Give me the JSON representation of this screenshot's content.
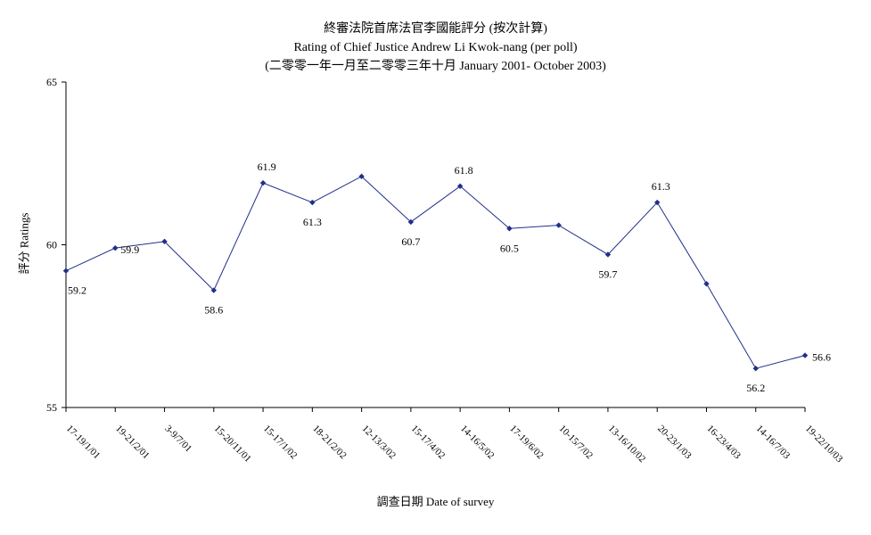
{
  "chart_data": {
    "type": "line",
    "title": "終審法院首席法官李國能評分 (按次計算)",
    "subtitle": "Rating of Chief Justice Andrew Li Kwok-nang  (per poll)",
    "subtitle2": "(二零零一年一月至二零零三年十月 January 2001- October 2003)",
    "xlabel": "調查日期 Date of survey",
    "ylabel": "評分 Ratings",
    "ylim": [
      55,
      65
    ],
    "yticks": [
      "55",
      "60",
      "65"
    ],
    "grid": false,
    "legend": "none",
    "line_color": "#1f2f8a",
    "categories": [
      "17-19/1/01",
      "19-21/2/01",
      "3-9/7/01",
      "15-20/11/01",
      "15-17/1/02",
      "18-21/2/02",
      "12-13/3/02",
      "15-17/4/02",
      "14-16/5/02",
      "17-19/6/02",
      "10-15/7/02",
      "13-16/10/02",
      "20-23/1/03",
      "16-23/4/03",
      "14-16/7/03",
      "19-22/10/03"
    ],
    "series": [
      {
        "values": [
          59.2,
          59.9,
          60.1,
          58.6,
          61.9,
          61.3,
          62.1,
          60.7,
          61.8,
          60.5,
          60.6,
          59.7,
          61.3,
          58.8,
          56.2,
          56.6
        ],
        "labels": [
          "59.2",
          "59.9",
          "",
          "58.6",
          "61.9",
          "61.3",
          "",
          "60.7",
          "61.8",
          "60.5",
          "",
          "59.7",
          "61.3",
          "",
          "56.2",
          "56.6"
        ]
      }
    ]
  }
}
